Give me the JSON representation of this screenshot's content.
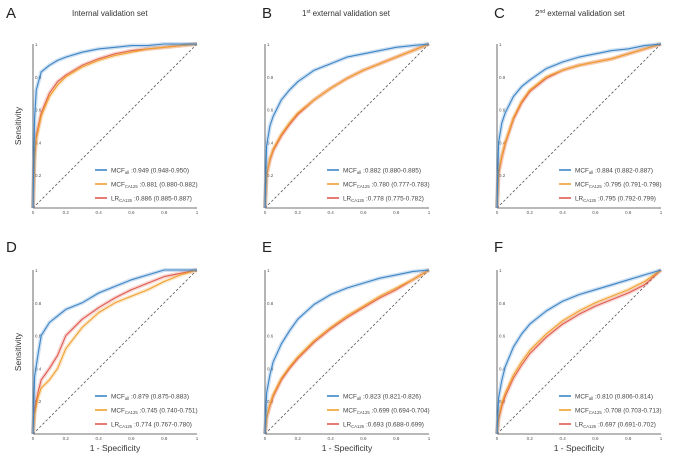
{
  "colors": {
    "all": "#3d85c6",
    "ca125": "#f0a030",
    "lr": "#e05a50",
    "diag": "#555555"
  },
  "chart_data": [
    {
      "panel": "A",
      "title": "Internal validation set",
      "title_sup": "",
      "type": "line",
      "xlabel": "",
      "ylabel": "Sensitivity",
      "xlim": [
        0,
        1
      ],
      "ylim": [
        0,
        1
      ],
      "ticks": [
        "0",
        "0.2",
        "0.4",
        "0.6",
        "0.8",
        "1"
      ],
      "series": [
        {
          "name": "MCF",
          "sub": "all",
          "auc": ":0.949 (0.948-0.950)",
          "color_key": "all",
          "x": [
            0,
            0.01,
            0.02,
            0.05,
            0.1,
            0.15,
            0.2,
            0.3,
            0.4,
            0.5,
            0.6,
            0.7,
            0.8,
            0.9,
            1
          ],
          "y": [
            0,
            0.55,
            0.72,
            0.83,
            0.87,
            0.9,
            0.92,
            0.95,
            0.97,
            0.98,
            0.99,
            0.99,
            1,
            1,
            1
          ]
        },
        {
          "name": "MCF",
          "sub": "CA125",
          "auc": ":0.881 (0.880-0.882)",
          "color_key": "ca125",
          "x": [
            0,
            0.01,
            0.02,
            0.05,
            0.1,
            0.15,
            0.2,
            0.3,
            0.4,
            0.5,
            0.6,
            0.7,
            0.8,
            0.9,
            1
          ],
          "y": [
            0,
            0.3,
            0.42,
            0.56,
            0.68,
            0.75,
            0.8,
            0.86,
            0.9,
            0.93,
            0.95,
            0.97,
            0.98,
            0.99,
            1
          ]
        },
        {
          "name": "LR",
          "sub": "CA125",
          "auc": ":0.886 (0.885-0.887)",
          "color_key": "lr",
          "x": [
            0,
            0.01,
            0.02,
            0.05,
            0.1,
            0.15,
            0.2,
            0.3,
            0.4,
            0.5,
            0.6,
            0.7,
            0.8,
            0.9,
            1
          ],
          "y": [
            0,
            0.32,
            0.44,
            0.58,
            0.7,
            0.77,
            0.81,
            0.87,
            0.91,
            0.94,
            0.96,
            0.97,
            0.98,
            0.99,
            1
          ]
        }
      ]
    },
    {
      "panel": "B",
      "title": " external validation set",
      "title_sup": "st",
      "title_num": "1",
      "type": "line",
      "xlabel": "",
      "ylabel": "",
      "xlim": [
        0,
        1
      ],
      "ylim": [
        0,
        1
      ],
      "ticks": [
        "0",
        "0.2",
        "0.4",
        "0.6",
        "0.8",
        "1"
      ],
      "series": [
        {
          "name": "MCF",
          "sub": "all",
          "auc": ":0.882 (0.880-0.885)",
          "color_key": "all",
          "x": [
            0,
            0.01,
            0.03,
            0.05,
            0.1,
            0.15,
            0.2,
            0.3,
            0.4,
            0.5,
            0.6,
            0.7,
            0.8,
            0.9,
            1
          ],
          "y": [
            0,
            0.38,
            0.5,
            0.56,
            0.66,
            0.72,
            0.77,
            0.84,
            0.88,
            0.92,
            0.94,
            0.96,
            0.98,
            0.99,
            1
          ]
        },
        {
          "name": "MCF",
          "sub": "CA125",
          "auc": ":0.780 (0.777-0.783)",
          "color_key": "ca125",
          "x": [
            0,
            0.01,
            0.03,
            0.05,
            0.1,
            0.15,
            0.2,
            0.3,
            0.4,
            0.5,
            0.6,
            0.7,
            0.8,
            0.9,
            1
          ],
          "y": [
            0,
            0.2,
            0.3,
            0.36,
            0.45,
            0.52,
            0.58,
            0.66,
            0.73,
            0.79,
            0.84,
            0.88,
            0.92,
            0.96,
            1
          ]
        },
        {
          "name": "LR",
          "sub": "CA125",
          "auc": ":0.778 (0.775-0.782)",
          "color_key": "lr",
          "x": [
            0,
            0.01,
            0.03,
            0.05,
            0.1,
            0.15,
            0.2,
            0.3,
            0.4,
            0.5,
            0.6,
            0.7,
            0.8,
            0.9,
            1
          ],
          "y": [
            0,
            0.2,
            0.29,
            0.35,
            0.44,
            0.51,
            0.57,
            0.66,
            0.73,
            0.79,
            0.84,
            0.88,
            0.92,
            0.96,
            1
          ]
        }
      ]
    },
    {
      "panel": "C",
      "title": " external validation set",
      "title_sup": "nd",
      "title_num": "2",
      "type": "line",
      "xlabel": "",
      "ylabel": "",
      "xlim": [
        0,
        1
      ],
      "ylim": [
        0,
        1
      ],
      "ticks": [
        "0",
        "0.2",
        "0.4",
        "0.6",
        "0.8",
        "1"
      ],
      "series": [
        {
          "name": "MCF",
          "sub": "all",
          "auc": ":0.884 (0.882-0.887)",
          "color_key": "all",
          "x": [
            0,
            0.01,
            0.03,
            0.05,
            0.1,
            0.15,
            0.2,
            0.3,
            0.4,
            0.5,
            0.6,
            0.7,
            0.8,
            0.9,
            1
          ],
          "y": [
            0,
            0.4,
            0.52,
            0.58,
            0.68,
            0.74,
            0.78,
            0.85,
            0.89,
            0.92,
            0.94,
            0.96,
            0.97,
            0.99,
            1
          ]
        },
        {
          "name": "MCF",
          "sub": "CA125",
          "auc": ":0.795 (0.791-0.798)",
          "color_key": "ca125",
          "x": [
            0,
            0.01,
            0.03,
            0.05,
            0.1,
            0.15,
            0.2,
            0.3,
            0.4,
            0.5,
            0.6,
            0.7,
            0.8,
            0.9,
            1
          ],
          "y": [
            0,
            0.22,
            0.32,
            0.4,
            0.55,
            0.65,
            0.72,
            0.8,
            0.84,
            0.87,
            0.89,
            0.91,
            0.94,
            0.97,
            1
          ]
        },
        {
          "name": "LR",
          "sub": "CA125",
          "auc": ":0.795 (0.792-0.799)",
          "color_key": "lr",
          "x": [
            0,
            0.01,
            0.03,
            0.05,
            0.1,
            0.15,
            0.2,
            0.3,
            0.4,
            0.5,
            0.6,
            0.7,
            0.8,
            0.9,
            1
          ],
          "y": [
            0,
            0.21,
            0.31,
            0.39,
            0.54,
            0.64,
            0.71,
            0.79,
            0.84,
            0.87,
            0.89,
            0.91,
            0.94,
            0.97,
            1
          ]
        }
      ]
    },
    {
      "panel": "D",
      "title": "",
      "title_sup": "",
      "type": "line",
      "xlabel": "1 - Specificity",
      "ylabel": "Sensitivity",
      "xlim": [
        0,
        1
      ],
      "ylim": [
        0,
        1
      ],
      "ticks": [
        "0",
        "0.2",
        "0.4",
        "0.6",
        "0.8",
        "1"
      ],
      "series": [
        {
          "name": "MCF",
          "sub": "all",
          "auc": ":0.879 (0.875-0.883)",
          "color_key": "all",
          "x": [
            0,
            0.01,
            0.03,
            0.05,
            0.1,
            0.15,
            0.2,
            0.3,
            0.4,
            0.5,
            0.6,
            0.7,
            0.8,
            0.9,
            1
          ],
          "y": [
            0,
            0.35,
            0.48,
            0.6,
            0.68,
            0.72,
            0.76,
            0.8,
            0.86,
            0.9,
            0.94,
            0.97,
            1,
            1,
            1
          ]
        },
        {
          "name": "MCF",
          "sub": "CA125",
          "auc": ":0.745 (0.740-0.751)",
          "color_key": "ca125",
          "x": [
            0,
            0.01,
            0.03,
            0.05,
            0.1,
            0.15,
            0.2,
            0.3,
            0.4,
            0.5,
            0.6,
            0.7,
            0.8,
            0.9,
            1
          ],
          "y": [
            0,
            0.12,
            0.22,
            0.28,
            0.33,
            0.4,
            0.52,
            0.65,
            0.74,
            0.8,
            0.84,
            0.88,
            0.93,
            0.97,
            1
          ]
        },
        {
          "name": "LR",
          "sub": "CA125",
          "auc": ":0.774 (0.767-0.780)",
          "color_key": "lr",
          "x": [
            0,
            0.01,
            0.03,
            0.05,
            0.1,
            0.15,
            0.2,
            0.3,
            0.4,
            0.5,
            0.6,
            0.7,
            0.8,
            0.9,
            1
          ],
          "y": [
            0,
            0.15,
            0.25,
            0.33,
            0.4,
            0.48,
            0.6,
            0.7,
            0.77,
            0.83,
            0.88,
            0.92,
            0.96,
            0.98,
            1
          ]
        }
      ]
    },
    {
      "panel": "E",
      "title": "",
      "title_sup": "",
      "type": "line",
      "xlabel": "1 - Specificity",
      "ylabel": "",
      "xlim": [
        0,
        1
      ],
      "ylim": [
        0,
        1
      ],
      "ticks": [
        "0",
        "0.2",
        "0.4",
        "0.6",
        "0.8",
        "1"
      ],
      "series": [
        {
          "name": "MCF",
          "sub": "all",
          "auc": ":0.823 (0.821-0.826)",
          "color_key": "all",
          "x": [
            0,
            0.01,
            0.03,
            0.05,
            0.1,
            0.15,
            0.2,
            0.3,
            0.4,
            0.5,
            0.6,
            0.7,
            0.8,
            0.9,
            1
          ],
          "y": [
            0,
            0.25,
            0.36,
            0.44,
            0.55,
            0.63,
            0.7,
            0.79,
            0.85,
            0.89,
            0.92,
            0.95,
            0.97,
            0.99,
            1
          ]
        },
        {
          "name": "MCF",
          "sub": "CA125",
          "auc": ":0.699 (0.694-0.704)",
          "color_key": "ca125",
          "x": [
            0,
            0.01,
            0.03,
            0.05,
            0.1,
            0.15,
            0.2,
            0.3,
            0.4,
            0.5,
            0.6,
            0.7,
            0.8,
            0.9,
            1
          ],
          "y": [
            0,
            0.1,
            0.18,
            0.24,
            0.34,
            0.41,
            0.47,
            0.57,
            0.65,
            0.72,
            0.78,
            0.84,
            0.89,
            0.94,
            1
          ]
        },
        {
          "name": "LR",
          "sub": "CA125",
          "auc": ":0.693 (0.688-0.699)",
          "color_key": "lr",
          "x": [
            0,
            0.01,
            0.03,
            0.05,
            0.1,
            0.15,
            0.2,
            0.3,
            0.4,
            0.5,
            0.6,
            0.7,
            0.8,
            0.9,
            1
          ],
          "y": [
            0,
            0.1,
            0.17,
            0.23,
            0.33,
            0.4,
            0.46,
            0.56,
            0.64,
            0.71,
            0.77,
            0.83,
            0.88,
            0.94,
            1
          ]
        }
      ]
    },
    {
      "panel": "F",
      "title": "",
      "title_sup": "",
      "type": "line",
      "xlabel": "1 - Specificity",
      "ylabel": "",
      "xlim": [
        0,
        1
      ],
      "ylim": [
        0,
        1
      ],
      "ticks": [
        "0",
        "0.2",
        "0.4",
        "0.6",
        "0.8",
        "1"
      ],
      "series": [
        {
          "name": "MCF",
          "sub": "all",
          "auc": ":0.810 (0.806-0.814)",
          "color_key": "all",
          "x": [
            0,
            0.01,
            0.03,
            0.05,
            0.1,
            0.15,
            0.2,
            0.3,
            0.4,
            0.5,
            0.6,
            0.7,
            0.8,
            0.9,
            1
          ],
          "y": [
            0,
            0.22,
            0.33,
            0.41,
            0.53,
            0.61,
            0.67,
            0.75,
            0.81,
            0.85,
            0.88,
            0.91,
            0.94,
            0.97,
            1
          ]
        },
        {
          "name": "MCF",
          "sub": "CA125",
          "auc": ":0.708 (0.703-0.713)",
          "color_key": "ca125",
          "x": [
            0,
            0.01,
            0.03,
            0.05,
            0.1,
            0.15,
            0.2,
            0.3,
            0.4,
            0.5,
            0.6,
            0.7,
            0.8,
            0.9,
            1
          ],
          "y": [
            0,
            0.1,
            0.19,
            0.25,
            0.36,
            0.44,
            0.51,
            0.61,
            0.69,
            0.75,
            0.8,
            0.84,
            0.88,
            0.93,
            1
          ]
        },
        {
          "name": "LR",
          "sub": "CA125",
          "auc": ":0.697 (0.691-0.702)",
          "color_key": "lr",
          "x": [
            0,
            0.01,
            0.03,
            0.05,
            0.1,
            0.15,
            0.2,
            0.3,
            0.4,
            0.5,
            0.6,
            0.7,
            0.8,
            0.9,
            1
          ],
          "y": [
            0,
            0.09,
            0.17,
            0.23,
            0.34,
            0.42,
            0.49,
            0.59,
            0.67,
            0.73,
            0.78,
            0.82,
            0.86,
            0.91,
            1
          ]
        }
      ]
    }
  ]
}
